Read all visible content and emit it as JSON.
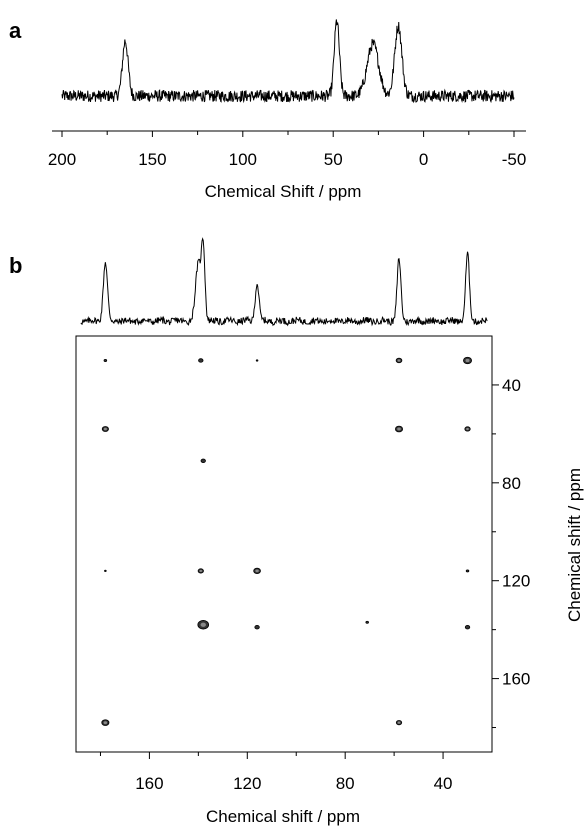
{
  "chart_data": [
    {
      "panel": "a",
      "type": "line",
      "xlabel": "Chemical Shift / ppm",
      "ylabel": "",
      "x_reversed": true,
      "xlim": [
        200,
        -50
      ],
      "xticks": [
        200,
        150,
        100,
        50,
        0,
        -50
      ],
      "xtick_labels": [
        "200",
        "150",
        "100",
        "50",
        "0",
        "-50"
      ],
      "baseline_noise": 0.06,
      "peaks": [
        {
          "x": 165,
          "height": 0.55,
          "width": 2.2
        },
        {
          "x": 48,
          "height": 0.75,
          "width": 2.0
        },
        {
          "x": 28,
          "height": 0.52,
          "width": 4.5
        },
        {
          "x": 14,
          "height": 0.7,
          "width": 2.8
        }
      ]
    },
    {
      "panel": "b",
      "type": "scatter",
      "subtype": "2d-correlation-spectrum",
      "xlabel": "Chemical shift / ppm",
      "ylabel": "Chemical shift / ppm",
      "x_reversed": true,
      "y_reversed": true,
      "xlim": [
        190,
        20
      ],
      "ylim": [
        20,
        190
      ],
      "xticks": [
        160,
        120,
        80,
        40
      ],
      "xtick_labels": [
        "160",
        "120",
        "80",
        "40"
      ],
      "x_minor_ticks": [
        180,
        140,
        100,
        60
      ],
      "yticks": [
        40,
        80,
        120,
        160
      ],
      "ytick_labels": [
        "40",
        "80",
        "120",
        "160"
      ],
      "y_minor_ticks": [
        60,
        100,
        140,
        180
      ],
      "projection_peaks": [
        {
          "x": 178,
          "height": 0.62,
          "width": 1.2
        },
        {
          "x": 140,
          "height": 0.6,
          "width": 1.6
        },
        {
          "x": 138,
          "height": 0.75,
          "width": 1.0
        },
        {
          "x": 116,
          "height": 0.4,
          "width": 1.1
        },
        {
          "x": 58,
          "height": 0.65,
          "width": 1.1
        },
        {
          "x": 30,
          "height": 0.7,
          "width": 1.1
        }
      ],
      "cross_peaks": [
        {
          "x": 178,
          "y": 30,
          "size": 1.5
        },
        {
          "x": 139,
          "y": 30,
          "size": 2.5
        },
        {
          "x": 116,
          "y": 30,
          "size": 1
        },
        {
          "x": 58,
          "y": 30,
          "size": 3.2
        },
        {
          "x": 30,
          "y": 30,
          "size": 4.5
        },
        {
          "x": 178,
          "y": 58,
          "size": 3.5
        },
        {
          "x": 58,
          "y": 58,
          "size": 4
        },
        {
          "x": 30,
          "y": 58,
          "size": 3
        },
        {
          "x": 138,
          "y": 71,
          "size": 2.5
        },
        {
          "x": 178,
          "y": 116,
          "size": 1
        },
        {
          "x": 139,
          "y": 116,
          "size": 3
        },
        {
          "x": 116,
          "y": 116,
          "size": 3.8
        },
        {
          "x": 30,
          "y": 116,
          "size": 1.5
        },
        {
          "x": 138,
          "y": 138,
          "size": 6
        },
        {
          "x": 116,
          "y": 139,
          "size": 2.5
        },
        {
          "x": 71,
          "y": 137,
          "size": 1.5
        },
        {
          "x": 30,
          "y": 139,
          "size": 2.5
        },
        {
          "x": 178,
          "y": 178,
          "size": 4
        },
        {
          "x": 58,
          "y": 178,
          "size": 3
        }
      ]
    }
  ],
  "labels": {
    "panel_a": "a",
    "panel_b": "b"
  }
}
